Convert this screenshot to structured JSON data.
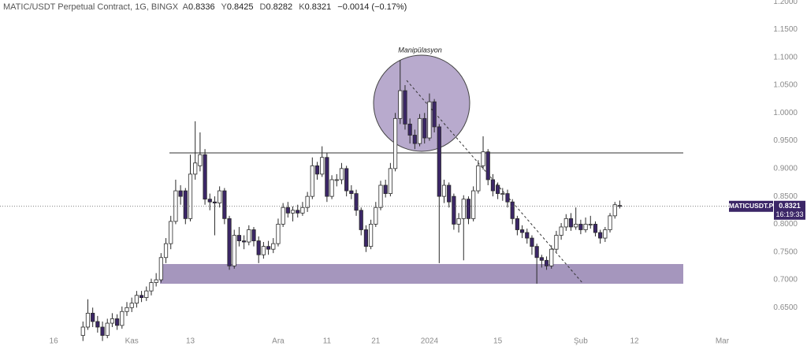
{
  "chart_data": {
    "type": "candlestick",
    "title": "MATIC/USDT Perpetual Contract, 1G, BINGX",
    "ohlc_labels": [
      "A",
      "Y",
      "D",
      "K"
    ],
    "change": "−0.0014 (−0.17%)",
    "annotations": [
      "Manipülasyon"
    ],
    "timer": "16:19:33",
    "x": [
      "2023-10-22",
      "2023-10-23",
      "2023-10-24",
      "2023-10-25",
      "2023-10-26",
      "2023-10-27",
      "2023-10-28",
      "2023-10-29",
      "2023-10-30",
      "2023-10-31",
      "2023-11-01",
      "2023-11-02",
      "2023-11-03",
      "2023-11-04",
      "2023-11-05",
      "2023-11-06",
      "2023-11-07",
      "2023-11-08",
      "2023-11-09",
      "2023-11-10",
      "2023-11-11",
      "2023-11-12",
      "2023-11-13",
      "2023-11-14",
      "2023-11-15",
      "2023-11-16",
      "2023-11-17",
      "2023-11-18",
      "2023-11-19",
      "2023-11-20",
      "2023-11-21",
      "2023-11-22",
      "2023-11-23",
      "2023-11-24",
      "2023-11-25",
      "2023-11-26",
      "2023-11-27",
      "2023-11-28",
      "2023-11-29",
      "2023-11-30",
      "2023-12-01",
      "2023-12-02",
      "2023-12-03",
      "2023-12-04",
      "2023-12-05",
      "2023-12-06",
      "2023-12-07",
      "2023-12-08",
      "2023-12-09",
      "2023-12-10",
      "2023-12-11",
      "2023-12-12",
      "2023-12-13",
      "2023-12-14",
      "2023-12-15",
      "2023-12-16",
      "2023-12-17",
      "2023-12-18",
      "2023-12-19",
      "2023-12-20",
      "2023-12-21",
      "2023-12-22",
      "2023-12-23",
      "2023-12-24",
      "2023-12-25",
      "2023-12-26",
      "2023-12-27",
      "2023-12-28",
      "2023-12-29",
      "2023-12-30",
      "2023-12-31",
      "2024-01-01",
      "2024-01-02",
      "2024-01-03",
      "2024-01-04",
      "2024-01-05",
      "2024-01-06",
      "2024-01-07",
      "2024-01-08",
      "2024-01-09",
      "2024-01-10",
      "2024-01-11",
      "2024-01-12",
      "2024-01-13",
      "2024-01-14",
      "2024-01-15",
      "2024-01-16",
      "2024-01-17",
      "2024-01-18",
      "2024-01-19",
      "2024-01-20",
      "2024-01-21",
      "2024-01-22",
      "2024-01-23",
      "2024-01-24",
      "2024-01-25",
      "2024-01-26",
      "2024-01-27",
      "2024-01-28",
      "2024-01-29",
      "2024-01-30",
      "2024-01-31",
      "2024-02-01",
      "2024-02-02",
      "2024-02-03",
      "2024-02-04",
      "2024-02-05",
      "2024-02-06",
      "2024-02-07",
      "2024-02-08",
      "2024-02-09"
    ],
    "series": [
      {
        "name": "MATICUSDT.P",
        "up_color": "#ffffff",
        "down_color": "#3b2667",
        "line_color": "#2a2a2a",
        "open": [
          0.6,
          0.615,
          0.64,
          0.625,
          0.615,
          0.6,
          0.622,
          0.63,
          0.618,
          0.643,
          0.65,
          0.658,
          0.672,
          0.668,
          0.68,
          0.695,
          0.7,
          0.74,
          0.765,
          0.805,
          0.86,
          0.86,
          0.81,
          0.89,
          0.905,
          0.925,
          0.845,
          0.84,
          0.838,
          0.86,
          0.81,
          0.725,
          0.78,
          0.77,
          0.768,
          0.79,
          0.77,
          0.745,
          0.76,
          0.755,
          0.765,
          0.8,
          0.83,
          0.82,
          0.825,
          0.82,
          0.83,
          0.85,
          0.905,
          0.89,
          0.92,
          0.85,
          0.88,
          0.88,
          0.9,
          0.86,
          0.855,
          0.825,
          0.79,
          0.76,
          0.8,
          0.83,
          0.87,
          0.855,
          0.9,
          0.99,
          1.04,
          0.98,
          0.96,
          0.945,
          0.99,
          0.955,
          1.02,
          0.975,
          0.85,
          0.87,
          0.85,
          0.8,
          0.81,
          0.845,
          0.81,
          0.86,
          0.905,
          0.93,
          0.88,
          0.87,
          0.855,
          0.855,
          0.84,
          0.81,
          0.79,
          0.785,
          0.775,
          0.76,
          0.74,
          0.735,
          0.725,
          0.755,
          0.78,
          0.795,
          0.81,
          0.795,
          0.8,
          0.79,
          0.8,
          0.8,
          0.785,
          0.775,
          0.79,
          0.815,
          0.8336
        ],
        "high": [
          0.625,
          0.665,
          0.65,
          0.635,
          0.625,
          0.63,
          0.64,
          0.638,
          0.652,
          0.66,
          0.668,
          0.68,
          0.68,
          0.688,
          0.702,
          0.712,
          0.748,
          0.775,
          0.815,
          0.88,
          0.87,
          0.865,
          0.925,
          0.985,
          0.965,
          0.935,
          0.855,
          0.85,
          0.868,
          0.865,
          0.815,
          0.79,
          0.795,
          0.78,
          0.798,
          0.795,
          0.778,
          0.768,
          0.77,
          0.775,
          0.81,
          0.838,
          0.84,
          0.832,
          0.835,
          0.84,
          0.858,
          0.92,
          0.912,
          0.94,
          0.928,
          0.888,
          0.89,
          0.91,
          0.905,
          0.87,
          0.862,
          0.83,
          0.798,
          0.808,
          0.84,
          0.878,
          0.88,
          0.91,
          1.0,
          1.095,
          1.05,
          0.99,
          0.97,
          0.998,
          1.0,
          1.035,
          1.025,
          0.98,
          0.88,
          0.875,
          0.855,
          0.82,
          0.852,
          0.85,
          0.868,
          0.915,
          0.958,
          0.935,
          0.89,
          0.875,
          0.865,
          0.862,
          0.845,
          0.815,
          0.798,
          0.792,
          0.78,
          0.765,
          0.745,
          0.742,
          0.762,
          0.788,
          0.802,
          0.818,
          0.82,
          0.83,
          0.808,
          0.812,
          0.815,
          0.805,
          0.79,
          0.795,
          0.82,
          0.84,
          0.8425
        ],
        "low": [
          0.59,
          0.61,
          0.615,
          0.605,
          0.59,
          0.595,
          0.615,
          0.61,
          0.612,
          0.635,
          0.642,
          0.65,
          0.66,
          0.662,
          0.672,
          0.688,
          0.695,
          0.73,
          0.755,
          0.8,
          0.835,
          0.8,
          0.805,
          0.88,
          0.895,
          0.835,
          0.825,
          0.78,
          0.83,
          0.8,
          0.718,
          0.72,
          0.76,
          0.755,
          0.762,
          0.76,
          0.73,
          0.738,
          0.745,
          0.748,
          0.76,
          0.795,
          0.812,
          0.805,
          0.812,
          0.815,
          0.822,
          0.845,
          0.88,
          0.885,
          0.84,
          0.845,
          0.868,
          0.872,
          0.85,
          0.845,
          0.815,
          0.78,
          0.75,
          0.755,
          0.795,
          0.825,
          0.848,
          0.85,
          0.895,
          0.98,
          0.97,
          0.945,
          0.935,
          0.94,
          0.945,
          0.95,
          0.965,
          0.73,
          0.838,
          0.83,
          0.79,
          0.785,
          0.735,
          0.8,
          0.805,
          0.855,
          0.898,
          0.87,
          0.85,
          0.845,
          0.842,
          0.83,
          0.8,
          0.78,
          0.775,
          0.765,
          0.745,
          0.693,
          0.722,
          0.718,
          0.72,
          0.75,
          0.772,
          0.788,
          0.788,
          0.79,
          0.782,
          0.785,
          0.792,
          0.778,
          0.765,
          0.768,
          0.785,
          0.81,
          0.8282
        ],
        "close": [
          0.615,
          0.64,
          0.625,
          0.615,
          0.6,
          0.622,
          0.63,
          0.618,
          0.643,
          0.65,
          0.658,
          0.672,
          0.668,
          0.68,
          0.695,
          0.7,
          0.74,
          0.765,
          0.805,
          0.86,
          0.85,
          0.81,
          0.89,
          0.91,
          0.925,
          0.845,
          0.84,
          0.838,
          0.86,
          0.81,
          0.725,
          0.78,
          0.77,
          0.768,
          0.79,
          0.77,
          0.745,
          0.76,
          0.755,
          0.765,
          0.8,
          0.83,
          0.82,
          0.825,
          0.82,
          0.83,
          0.85,
          0.905,
          0.89,
          0.92,
          0.85,
          0.88,
          0.88,
          0.9,
          0.86,
          0.855,
          0.825,
          0.79,
          0.76,
          0.8,
          0.83,
          0.87,
          0.855,
          0.9,
          0.99,
          1.04,
          0.98,
          0.96,
          0.945,
          0.99,
          0.955,
          1.02,
          0.975,
          0.85,
          0.87,
          0.84,
          0.8,
          0.81,
          0.845,
          0.81,
          0.86,
          0.905,
          0.93,
          0.88,
          0.86,
          0.855,
          0.855,
          0.84,
          0.81,
          0.79,
          0.785,
          0.775,
          0.76,
          0.74,
          0.735,
          0.725,
          0.755,
          0.78,
          0.795,
          0.81,
          0.795,
          0.8,
          0.79,
          0.8,
          0.8,
          0.785,
          0.775,
          0.79,
          0.815,
          0.835,
          0.8321
        ]
      }
    ],
    "xlim": [
      "2023-10-05",
      "2024-03-09"
    ],
    "xticks": [
      {
        "value": "2023-10-16",
        "label": "16"
      },
      {
        "value": "2023-11-01",
        "label": "Kas"
      },
      {
        "value": "2023-11-13",
        "label": "13"
      },
      {
        "value": "2023-12-01",
        "label": "Ara"
      },
      {
        "value": "2023-12-11",
        "label": "11"
      },
      {
        "value": "2023-12-21",
        "label": "21"
      },
      {
        "value": "2024-01-01",
        "label": "2024"
      },
      {
        "value": "2024-01-15",
        "label": "15"
      },
      {
        "value": "2024-02-01",
        "label": "Şub"
      },
      {
        "value": "2024-02-12",
        "label": "12"
      },
      {
        "value": "2024-03-01",
        "label": "Mar"
      }
    ],
    "ylim": [
      0.581,
      1.203
    ],
    "yticks": [
      {
        "value": 1.2,
        "label": "1.2000"
      },
      {
        "value": 1.15,
        "label": "1.1500"
      },
      {
        "value": 1.1,
        "label": "1.1000"
      },
      {
        "value": 1.05,
        "label": "1.0500"
      },
      {
        "value": 1.0,
        "label": "1.0000"
      },
      {
        "value": 0.95,
        "label": "0.9500"
      },
      {
        "value": 0.9,
        "label": "0.9000"
      },
      {
        "value": 0.85,
        "label": "0.8500"
      },
      {
        "value": 0.8,
        "label": "0.8000"
      },
      {
        "value": 0.75,
        "label": "0.7500"
      },
      {
        "value": 0.7,
        "label": "0.7000"
      },
      {
        "value": 0.65,
        "label": "0.6500"
      }
    ],
    "grid": false
  }
}
